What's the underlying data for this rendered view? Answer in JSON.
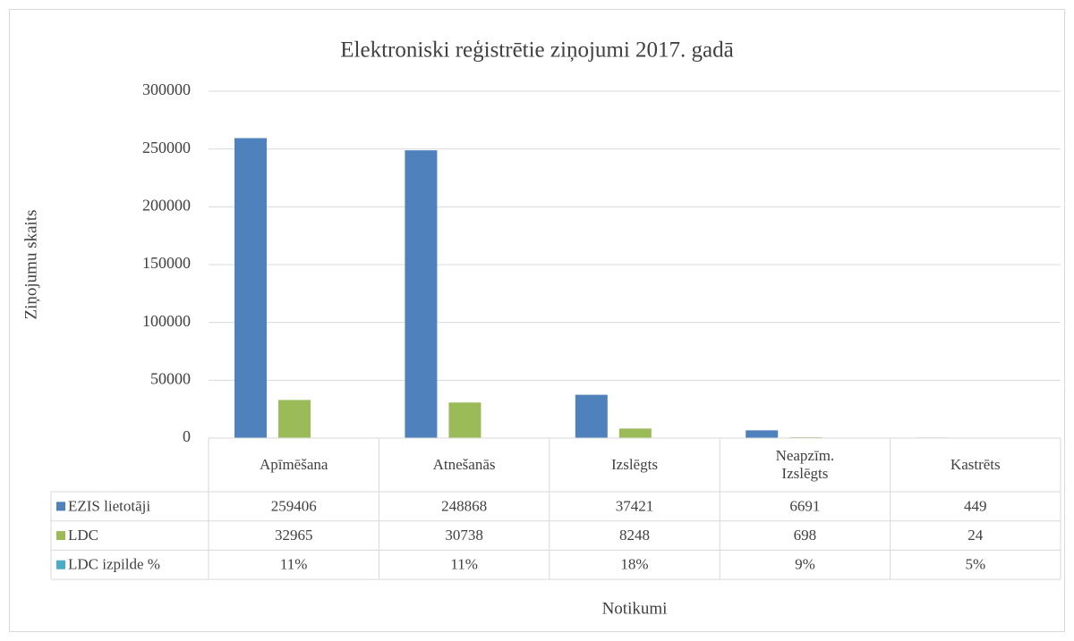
{
  "chart_data": {
    "type": "bar",
    "title": "Elektroniski reģistrētie ziņojumi 2017. gadā",
    "y_label": "Ziņojumu skaits",
    "x_label": "Notikumi",
    "categories": [
      "Apīmēšana",
      "Atnešanās",
      "Izslēgts",
      "Neapzīm. Izslēgts",
      "Kastrēts"
    ],
    "series": [
      {
        "name": "EZIS lietotāji",
        "color": "#4f81bd",
        "values": [
          259406,
          248868,
          37421,
          6691,
          449
        ]
      },
      {
        "name": "LDC",
        "color": "#9bbb59",
        "values": [
          32965,
          30738,
          8248,
          698,
          24
        ]
      },
      {
        "name": "LDC izpilde %",
        "color": "#4bacc6",
        "values": [
          11,
          11,
          18,
          9,
          5
        ],
        "value_labels": [
          "11%",
          "11%",
          "18%",
          "9%",
          "5%"
        ]
      }
    ],
    "ylim": [
      0,
      300000
    ],
    "yticks": [
      0,
      50000,
      100000,
      150000,
      200000,
      250000,
      300000
    ],
    "grid": true,
    "data_table": true
  }
}
